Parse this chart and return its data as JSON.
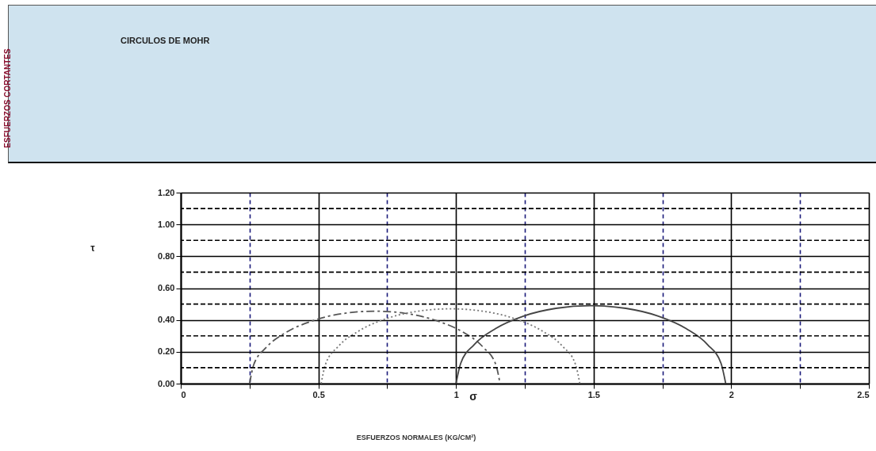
{
  "chart_data": {
    "type": "line",
    "title": "CIRCULOS DE MOHR",
    "annotations": [
      "τ",
      "σ",
      "ESFUERZOS NORMALES (KG/CM²)",
      "ESFUERZOS CORTANTES"
    ],
    "series": [
      {
        "color": "#555555",
        "line_style": "dashed",
        "x": [
          0.25,
          0.265,
          0.311,
          0.383,
          0.478,
          0.587,
          0.705,
          0.823,
          0.932,
          1.027,
          1.099,
          1.145,
          1.16
        ],
        "values": [
          0,
          0.118,
          0.228,
          0.322,
          0.394,
          0.44,
          0.455,
          0.44,
          0.394,
          0.322,
          0.228,
          0.118,
          0
        ]
      },
      {
        "color": "#777777",
        "line_style": "dotted",
        "x": [
          0.51,
          0.526,
          0.573,
          0.648,
          0.745,
          0.858,
          0.98,
          1.102,
          1.215,
          1.312,
          1.387,
          1.434,
          1.45
        ],
        "values": [
          0,
          0.122,
          0.235,
          0.332,
          0.407,
          0.454,
          0.47,
          0.454,
          0.407,
          0.332,
          0.235,
          0.122,
          0
        ]
      },
      {
        "color": "#444444",
        "line_style": "solid",
        "x": [
          1.0,
          1.017,
          1.066,
          1.144,
          1.245,
          1.363,
          1.49,
          1.617,
          1.735,
          1.836,
          1.914,
          1.963,
          1.98
        ],
        "values": [
          0,
          0.127,
          0.245,
          0.346,
          0.424,
          0.473,
          0.49,
          0.473,
          0.424,
          0.346,
          0.245,
          0.127,
          0
        ]
      }
    ],
    "xlim": [
      0,
      2.5
    ],
    "xticks": [
      0,
      {
        "value": 0.25,
        "label": null
      },
      0.5,
      {
        "value": 0.75,
        "label": null
      },
      1,
      {
        "value": 1.25,
        "label": null
      },
      1.5,
      {
        "value": 1.75,
        "label": null
      },
      2,
      {
        "value": 2.25,
        "label": null
      },
      2.5
    ],
    "ylim": [
      0,
      1.2
    ],
    "yticks": [
      {
        "value": 0,
        "label": "0.00"
      },
      {
        "value": 0.1,
        "label": null
      },
      {
        "value": 0.2,
        "label": "0.20"
      },
      {
        "value": 0.3,
        "label": null
      },
      {
        "value": 0.4,
        "label": "0.40"
      },
      {
        "value": 0.5,
        "label": null
      },
      {
        "value": 0.6,
        "label": "0.60"
      },
      {
        "value": 0.7,
        "label": null
      },
      {
        "value": 0.8,
        "label": "0.80"
      },
      {
        "value": 0.9,
        "label": null
      },
      {
        "value": 1.0,
        "label": "1.00"
      },
      {
        "value": 1.1,
        "label": null
      },
      {
        "value": 1.2,
        "label": "1.20"
      }
    ],
    "grid": true,
    "marker": "none"
  }
}
